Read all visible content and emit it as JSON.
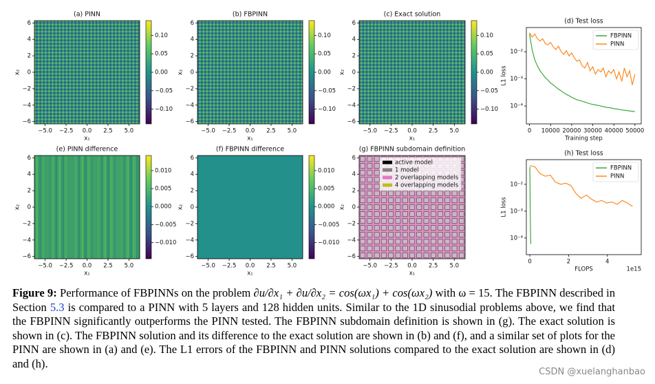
{
  "chart_data": [
    {
      "type": "heatmap",
      "title": "(a) PINN",
      "xlabel": "x₁",
      "ylabel": "x₂",
      "xlim": [
        -6.28,
        6.28
      ],
      "ylim": [
        -6.28,
        6.28
      ],
      "xticks": [
        {
          "value": -5,
          "label": "−5.0"
        },
        {
          "value": -2.5,
          "label": "−2.5"
        },
        {
          "value": 0,
          "label": "0.0"
        },
        2.5,
        {
          "value": 5,
          "label": "5.0"
        }
      ],
      "yticks": [
        {
          "value": -6,
          "label": "−6"
        },
        {
          "value": -4,
          "label": "−4"
        },
        {
          "value": -2,
          "label": "−2"
        },
        0,
        2,
        4,
        6
      ],
      "clim": [
        -0.14,
        0.14
      ],
      "cticks": [
        {
          "value": 0.1,
          "label": "0.10"
        },
        0.05,
        {
          "value": 0,
          "label": "0.00"
        },
        {
          "value": -0.05,
          "label": "−0.05"
        },
        {
          "value": -0.1,
          "label": "−0.10"
        }
      ],
      "colormap": "viridis"
    },
    {
      "type": "heatmap",
      "title": "(b) FBPINN",
      "xlabel": "x₁",
      "ylabel": "x₂",
      "xlim": [
        -6.28,
        6.28
      ],
      "ylim": [
        -6.28,
        6.28
      ],
      "xticks": [
        {
          "value": -5,
          "label": "−5.0"
        },
        {
          "value": -2.5,
          "label": "−2.5"
        },
        {
          "value": 0,
          "label": "0.0"
        },
        2.5,
        {
          "value": 5,
          "label": "5.0"
        }
      ],
      "yticks": [
        {
          "value": -6,
          "label": "−6"
        },
        {
          "value": -4,
          "label": "−4"
        },
        {
          "value": -2,
          "label": "−2"
        },
        0,
        2,
        4,
        6
      ],
      "clim": [
        -0.14,
        0.14
      ],
      "cticks": [
        {
          "value": 0.1,
          "label": "0.10"
        },
        0.05,
        {
          "value": 0,
          "label": "0.00"
        },
        {
          "value": -0.05,
          "label": "−0.05"
        },
        {
          "value": -0.1,
          "label": "−0.10"
        }
      ],
      "colormap": "viridis"
    },
    {
      "type": "heatmap",
      "title": "(c) Exact solution",
      "xlabel": "x₁",
      "ylabel": "x₂",
      "xlim": [
        -6.28,
        6.28
      ],
      "ylim": [
        -6.28,
        6.28
      ],
      "xticks": [
        {
          "value": -5,
          "label": "−5.0"
        },
        {
          "value": -2.5,
          "label": "−2.5"
        },
        {
          "value": 0,
          "label": "0.0"
        },
        2.5,
        {
          "value": 5,
          "label": "5.0"
        }
      ],
      "yticks": [
        {
          "value": -6,
          "label": "−6"
        },
        {
          "value": -4,
          "label": "−4"
        },
        {
          "value": -2,
          "label": "−2"
        },
        0,
        2,
        4,
        6
      ],
      "clim": [
        -0.14,
        0.14
      ],
      "cticks": [
        {
          "value": 0.1,
          "label": "0.10"
        },
        0.05,
        {
          "value": 0,
          "label": "0.00"
        },
        {
          "value": -0.05,
          "label": "−0.05"
        },
        {
          "value": -0.1,
          "label": "−0.10"
        }
      ],
      "colormap": "viridis"
    },
    {
      "type": "line",
      "title": "(d) Test loss",
      "xlabel": "Training step",
      "ylabel": "L1 loss",
      "log_y": true,
      "xlim": [
        -1500,
        53000
      ],
      "ylim": [
        2.2e-05,
        0.078
      ],
      "xticks": [
        0,
        10000,
        20000,
        30000,
        40000,
        50000
      ],
      "yticks": [
        {
          "value": 0.01,
          "label": "10⁻²"
        },
        {
          "value": 0.001,
          "label": "10⁻³"
        },
        {
          "value": 0.0001,
          "label": "10⁻⁴"
        }
      ],
      "legend": "upper right",
      "x": [
        0,
        1250,
        2500,
        3750,
        5000,
        6250,
        7500,
        8750,
        10000,
        11250,
        12500,
        13750,
        15000,
        16250,
        17500,
        18750,
        20000,
        21250,
        22500,
        23750,
        25000,
        26250,
        27500,
        28750,
        30000,
        31250,
        32500,
        33750,
        35000,
        36250,
        37500,
        38750,
        40000,
        41250,
        42500,
        43750,
        45000,
        46250,
        47500,
        48750,
        50000
      ],
      "series": [
        {
          "name": "FBPINN",
          "color": "#2ca02c",
          "values": [
            0.045,
            0.012,
            0.005,
            0.003,
            0.002,
            0.0015,
            0.0011,
            0.0009,
            0.0007,
            0.0006,
            0.0005,
            0.00042,
            0.00036,
            0.00031,
            0.00027,
            0.00024,
            0.00021,
            0.00019,
            0.00017,
            0.00016,
            0.00015,
            0.00014,
            0.00013,
            0.00012,
            0.000115,
            0.00011,
            0.000105,
            0.0001,
            9.5e-05,
            9e-05,
            8.8e-05,
            8.5e-05,
            8e-05,
            7.8e-05,
            7.5e-05,
            7.2e-05,
            7e-05,
            6.8e-05,
            6.6e-05,
            6.4e-05,
            6.2e-05
          ]
        },
        {
          "name": "PINN",
          "color": "#ff7f0e",
          "values": [
            0.05,
            0.035,
            0.045,
            0.03,
            0.025,
            0.03,
            0.02,
            0.018,
            0.022,
            0.015,
            0.012,
            0.016,
            0.01,
            0.008,
            0.011,
            0.007,
            0.009,
            0.006,
            0.0045,
            0.005,
            0.003,
            0.0025,
            0.004,
            0.002,
            0.0028,
            0.0015,
            0.0022,
            0.0018,
            0.0025,
            0.0012,
            0.002,
            0.0016,
            0.0022,
            0.001,
            0.0018,
            0.0008,
            0.0025,
            0.0012,
            0.002,
            0.0006,
            0.0015
          ]
        }
      ]
    },
    {
      "type": "heatmap",
      "title": "(e) PINN difference",
      "xlabel": "x₁",
      "ylabel": "x₂",
      "xlim": [
        -6.28,
        6.28
      ],
      "ylim": [
        -6.28,
        6.28
      ],
      "xticks": [
        {
          "value": -5,
          "label": "−5.0"
        },
        {
          "value": -2.5,
          "label": "−2.5"
        },
        {
          "value": 0,
          "label": "0.0"
        },
        2.5,
        {
          "value": 5,
          "label": "5.0"
        }
      ],
      "yticks": [
        {
          "value": -6,
          "label": "−6"
        },
        {
          "value": -4,
          "label": "−4"
        },
        {
          "value": -2,
          "label": "−2"
        },
        0,
        2,
        4,
        6
      ],
      "clim": [
        -0.0145,
        0.0142
      ],
      "cticks": [
        {
          "value": 0.01,
          "label": "0.010"
        },
        0.005,
        {
          "value": 0,
          "label": "0.000"
        },
        {
          "value": -0.005,
          "label": "−0.005"
        },
        {
          "value": -0.01,
          "label": "−0.010"
        }
      ],
      "colormap": "viridis"
    },
    {
      "type": "heatmap",
      "title": "(f) FBPINN difference",
      "xlabel": "x₁",
      "ylabel": "x₂",
      "xlim": [
        -6.28,
        6.28
      ],
      "ylim": [
        -6.28,
        6.28
      ],
      "xticks": [
        {
          "value": -5,
          "label": "−5.0"
        },
        {
          "value": -2.5,
          "label": "−2.5"
        },
        {
          "value": 0,
          "label": "0.0"
        },
        2.5,
        {
          "value": 5,
          "label": "5.0"
        }
      ],
      "yticks": [
        {
          "value": -6,
          "label": "−6"
        },
        {
          "value": -4,
          "label": "−4"
        },
        {
          "value": -2,
          "label": "−2"
        },
        0,
        2,
        4,
        6
      ],
      "clim": [
        -0.0145,
        0.0142
      ],
      "cticks": [
        {
          "value": 0.01,
          "label": "0.010"
        },
        0.005,
        {
          "value": 0,
          "label": "0.000"
        },
        {
          "value": -0.005,
          "label": "−0.005"
        },
        {
          "value": -0.01,
          "label": "−0.010"
        }
      ],
      "colormap": "viridis"
    },
    {
      "type": "heatmap",
      "title": "(g) FBPINN subdomain definition",
      "xlabel": "x₁",
      "ylabel": "x₂",
      "xlim": [
        -6.28,
        6.28
      ],
      "ylim": [
        -6.28,
        6.28
      ],
      "xticks": [
        {
          "value": -5,
          "label": "−5.0"
        },
        {
          "value": -2.5,
          "label": "−2.5"
        },
        {
          "value": 0,
          "label": "0.0"
        },
        2.5,
        {
          "value": 5,
          "label": "5.0"
        }
      ],
      "yticks": [
        {
          "value": -6,
          "label": "−6"
        },
        {
          "value": -4,
          "label": "−4"
        },
        {
          "value": -2,
          "label": "−2"
        },
        0,
        2,
        4,
        6
      ],
      "series": [
        {
          "name": "active model",
          "color": "#000000"
        },
        {
          "name": "1 model",
          "color": "#7f7f7f"
        },
        {
          "name": "2 overlapping models",
          "color": "#e377c2"
        },
        {
          "name": "4 overlapping models",
          "color": "#bcbd22"
        }
      ]
    },
    {
      "type": "line",
      "title": "(h) Test loss",
      "xlabel": "FLOPS",
      "ylabel": "L1 loss",
      "log_y": true,
      "x_offset_label": "1e15",
      "xlim": [
        -180000000000000.0,
        5750000000000000.0
      ],
      "ylim": [
        2.4e-05,
        0.083
      ],
      "xticks": [
        0,
        {
          "value": 2000000000000000.0,
          "label": "2"
        },
        {
          "value": 4000000000000000.0,
          "label": "4"
        }
      ],
      "yticks": [
        {
          "value": 0.01,
          "label": "10⁻²"
        },
        {
          "value": 0.001,
          "label": "10⁻³"
        },
        {
          "value": 0.0001,
          "label": "10⁻⁴"
        }
      ],
      "legend": "upper right",
      "series": [
        {
          "name": "FBPINN",
          "color": "#2ca02c",
          "x": [
            0,
            5000000000000.0,
            10000000000000.0,
            15000000000000.0,
            20000000000000.0,
            25000000000000.0,
            30000000000000.0,
            35000000000000.0,
            40000000000000.0,
            50000000000000.0
          ],
          "values": [
            0.045,
            0.02,
            0.005,
            0.002,
            0.001,
            0.0005,
            0.0003,
            0.00015,
            0.0001,
            6e-05
          ]
        },
        {
          "name": "PINN",
          "color": "#ff7f0e",
          "x": [
            0,
            265000000000000.0,
            530000000000000.0,
            795000000000000.0,
            1060000000000000.0,
            1325000000000000.0,
            1590000000000000.0,
            1855000000000000.0,
            2120000000000000.0,
            2385000000000000.0,
            2650000000000000.0,
            2915000000000000.0,
            3180000000000000.0,
            3445000000000000.0,
            3710000000000000.0,
            3975000000000000.0,
            4240000000000000.0,
            4505000000000000.0,
            4770000000000000.0,
            5035000000000000.0,
            5300000000000000.0
          ],
          "values": [
            0.05,
            0.045,
            0.025,
            0.02,
            0.022,
            0.012,
            0.01,
            0.011,
            0.009,
            0.0045,
            0.003,
            0.004,
            0.0028,
            0.0022,
            0.0025,
            0.002,
            0.0022,
            0.0018,
            0.0025,
            0.002,
            0.0015
          ]
        }
      ]
    }
  ],
  "caption": {
    "label": "Figure 9:",
    "before": "Performance of FBPINNs on the problem",
    "equation": "∂u/∂x₁ + ∂u/∂x₂ = cos(ωx₁) + cos(ωx₂)",
    "middle": "with ω = 15. The FBPINN described in Section",
    "link": "5.3",
    "after": "is compared to a PINN with 5 layers and 128 hidden units. Similar to the 1D sinusodial problems above, we find that the FBPINN significantly outperforms the PINN tested. The FBPINN subdomain definition is shown in (g). The exact solution is shown in (c). The FBPINN solution and its difference to the exact solution are shown in (b) and (f), and a similar set of plots for the PINN are shown in (a) and (e). The L1 errors of the FBPINN and PINN solutions compared to the exact solution are shown in (d) and (h)."
  },
  "watermark": "CSDN @xuelanghanbao"
}
